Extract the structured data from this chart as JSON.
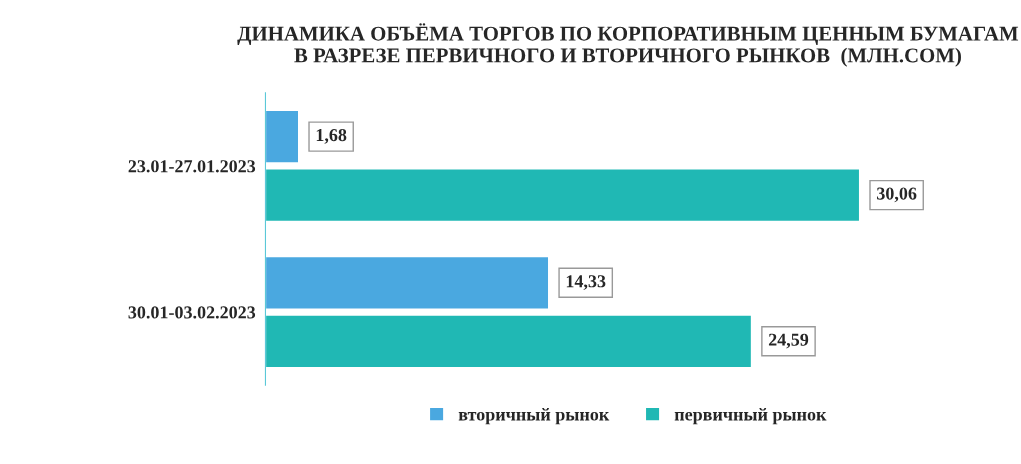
{
  "chart_data": {
    "type": "bar",
    "orientation": "horizontal",
    "title": "ДИНАМИКА ОБЪЁМА ТОРГОВ ПО КОРПОРАТИВНЫМ ЦЕННЫМ БУМАГАМ\nВ РАЗРЕЗЕ ПЕРВИЧНОГО И ВТОРИЧНОГО РЫНКОВ  (МЛН.СОМ)",
    "categories": [
      "23.01-27.01.2023",
      "30.01-03.02.2023"
    ],
    "series": [
      {
        "name": "вторичный рынок",
        "color": "#4aa8e0",
        "values": [
          1.68,
          14.33
        ],
        "value_labels": [
          "1,68",
          "14,33"
        ]
      },
      {
        "name": "первичный рынок",
        "color": "#20b8b4",
        "values": [
          30.06,
          24.59
        ],
        "value_labels": [
          "30,06",
          "24,59"
        ]
      }
    ],
    "tick_labels": "y",
    "legend": "bottom"
  }
}
